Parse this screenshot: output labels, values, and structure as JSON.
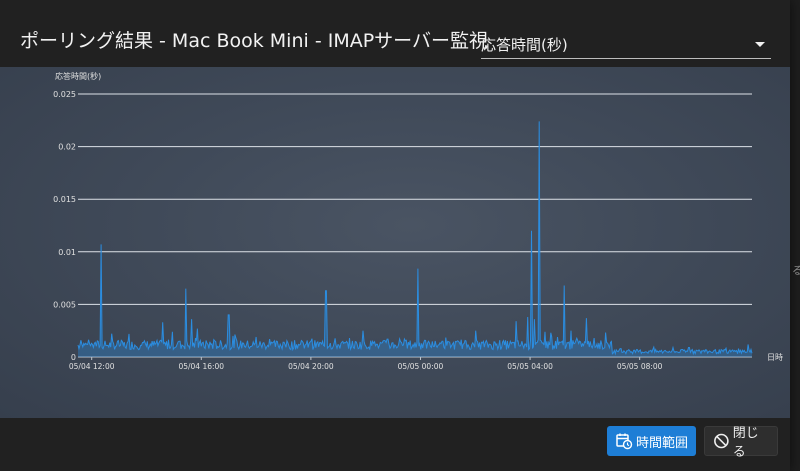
{
  "dialog": {
    "title": "ポーリング結果 - Mac Book Mini - IMAPサーバー監視",
    "metric_select": {
      "value": "応答時間(秒)"
    },
    "buttons": {
      "time_range": "時間範囲",
      "close": "閉じる"
    }
  },
  "edge_text": "る",
  "colors": {
    "accent": "#1e7ed6",
    "series": "#2b8de0"
  },
  "chart_data": {
    "type": "line",
    "ylabel": "応答時間(秒)",
    "xlabel": "日時",
    "ylim": [
      0,
      0.025
    ],
    "yticks": [
      "0",
      "0.005",
      "0.01",
      "0.015",
      "0.02",
      "0.025"
    ],
    "xlim_hours": [
      0,
      24.6
    ],
    "xticks": [
      {
        "label": "05/04 12:00",
        "h": 0.5
      },
      {
        "label": "05/04 16:00",
        "h": 4.5
      },
      {
        "label": "05/04 20:00",
        "h": 8.5
      },
      {
        "label": "05/05 00:00",
        "h": 12.5
      },
      {
        "label": "05/05 04:00",
        "h": 16.5
      },
      {
        "label": "05/05 08:00",
        "h": 20.5
      }
    ],
    "grid": true,
    "series": [
      {
        "name": "応答時間",
        "baseline": 0.0007,
        "spikes": [
          [
            0.1,
            0.0016
          ],
          [
            0.35,
            0.0012
          ],
          [
            0.6,
            0.0013
          ],
          [
            0.85,
            0.0107
          ],
          [
            1.1,
            0.0011
          ],
          [
            1.45,
            0.0015
          ],
          [
            1.85,
            0.0022
          ],
          [
            2.3,
            0.0011
          ],
          [
            2.8,
            0.0012
          ],
          [
            3.1,
            0.0033
          ],
          [
            3.45,
            0.0024
          ],
          [
            3.7,
            0.0015
          ],
          [
            3.95,
            0.0065
          ],
          [
            4.15,
            0.0036
          ],
          [
            4.35,
            0.0027
          ],
          [
            4.7,
            0.0013
          ],
          [
            5.2,
            0.0015
          ],
          [
            5.5,
            0.004
          ],
          [
            5.75,
            0.0018
          ],
          [
            6.05,
            0.0013
          ],
          [
            6.5,
            0.0019
          ],
          [
            7.0,
            0.0017
          ],
          [
            7.5,
            0.0014
          ],
          [
            8.05,
            0.0012
          ],
          [
            8.5,
            0.0015
          ],
          [
            9.05,
            0.0063
          ],
          [
            9.35,
            0.0013
          ],
          [
            9.9,
            0.0018
          ],
          [
            10.4,
            0.0025
          ],
          [
            10.8,
            0.0013
          ],
          [
            11.3,
            0.0017
          ],
          [
            11.8,
            0.0014
          ],
          [
            12.4,
            0.0084
          ],
          [
            12.8,
            0.0013
          ],
          [
            13.3,
            0.0015
          ],
          [
            13.8,
            0.0014
          ],
          [
            14.5,
            0.0025
          ],
          [
            14.9,
            0.0013
          ],
          [
            15.4,
            0.0016
          ],
          [
            16.0,
            0.0034
          ],
          [
            16.4,
            0.0038
          ],
          [
            16.55,
            0.012
          ],
          [
            16.65,
            0.0036
          ],
          [
            16.82,
            0.0224
          ],
          [
            17.05,
            0.0024
          ],
          [
            17.25,
            0.0023
          ],
          [
            17.5,
            0.0018
          ],
          [
            17.75,
            0.0068
          ],
          [
            18.0,
            0.0025
          ],
          [
            18.3,
            0.0015
          ],
          [
            18.55,
            0.0037
          ],
          [
            18.85,
            0.0018
          ],
          [
            19.3,
            0.0012
          ],
          [
            19.8,
            0.0008
          ],
          [
            20.4,
            0.0007
          ],
          [
            21.0,
            0.0007
          ],
          [
            21.7,
            0.0006
          ],
          [
            22.3,
            0.0009
          ],
          [
            22.9,
            0.0007
          ],
          [
            23.5,
            0.0006
          ],
          [
            24.1,
            0.0008
          ],
          [
            24.45,
            0.0012
          ]
        ]
      }
    ]
  }
}
